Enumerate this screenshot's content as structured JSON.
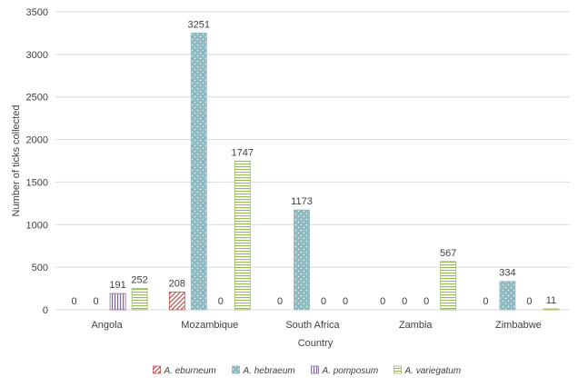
{
  "chart_data": {
    "type": "bar",
    "xlabel": "Country",
    "ylabel": "Number  of ticks collected",
    "ylim": [
      0,
      3500
    ],
    "yticks": [
      0,
      500,
      1000,
      1500,
      2000,
      2500,
      3000,
      3500
    ],
    "grid": true,
    "legend_position": "bottom",
    "categories": [
      "Angola",
      "Mozambique",
      "South Africa",
      "Zambia",
      "Zimbabwe"
    ],
    "series": [
      {
        "name": "A. eburneum",
        "values": [
          0,
          208,
          0,
          0,
          0
        ],
        "color": "#c0504d",
        "pattern": "diagonal-hatch"
      },
      {
        "name": "A. hebraeum",
        "values": [
          0,
          3251,
          1173,
          0,
          334
        ],
        "color": "#8fb9c0",
        "pattern": "dotted-fill"
      },
      {
        "name": "A. pomposum",
        "values": [
          191,
          0,
          0,
          0,
          0
        ],
        "color": "#8064a2",
        "pattern": "vertical-lines"
      },
      {
        "name": "A. variegatum",
        "values": [
          252,
          1747,
          0,
          567,
          11
        ],
        "color": "#9bbb59",
        "pattern": "horizontal-lines"
      }
    ]
  }
}
